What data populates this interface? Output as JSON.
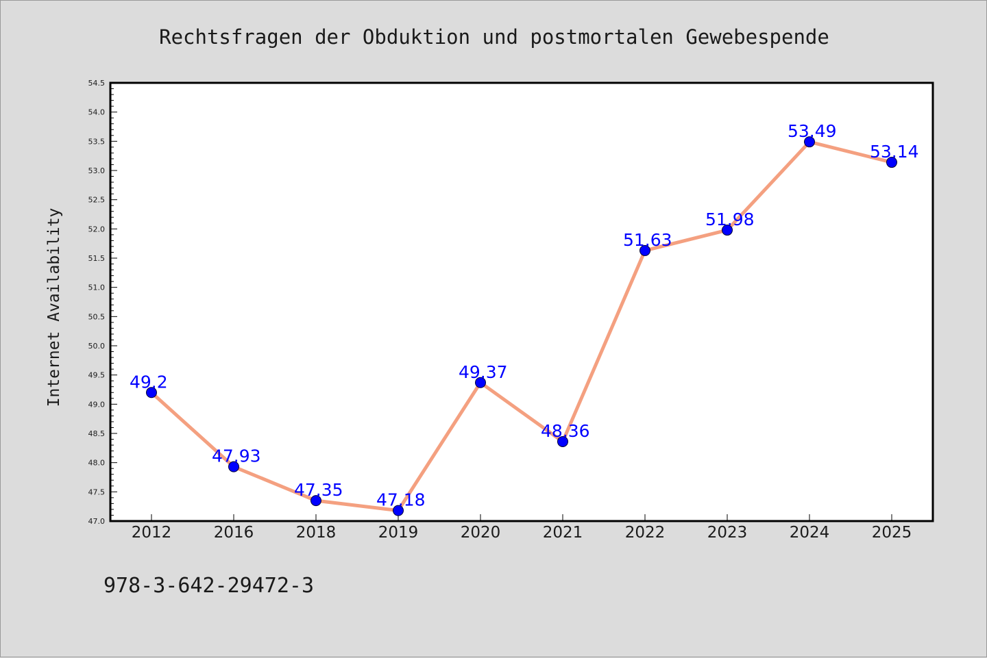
{
  "chart_data": {
    "type": "line",
    "title": "Rechtsfragen der Obduktion und postmortalen Gewebespende",
    "ylabel": "Internet Availability",
    "xlabel": "",
    "categories": [
      "2012",
      "2016",
      "2018",
      "2019",
      "2020",
      "2021",
      "2022",
      "2023",
      "2024",
      "2025"
    ],
    "series": [
      {
        "values": [
          49.2,
          47.93,
          47.35,
          47.18,
          49.37,
          48.36,
          51.63,
          51.98,
          53.49,
          53.14
        ],
        "labels": [
          "49.2",
          "47.93",
          "47.35",
          "47.18",
          "49.37",
          "48.36",
          "51.63",
          "51.98",
          "53.49",
          "53.14"
        ],
        "line_color": "#f4a080",
        "marker_color": "#0000ff"
      }
    ],
    "ylim": [
      47.0,
      54.5
    ],
    "yticks": [
      "47.0",
      "47.5",
      "48.0",
      "48.5",
      "49.0",
      "49.5",
      "50.0",
      "50.5",
      "51.0",
      "51.5",
      "52.0",
      "52.5",
      "53.0",
      "53.5",
      "54.0",
      "54.5"
    ],
    "grid": false,
    "legend": "none",
    "background": "#dcdcdc",
    "plot_background": "#ffffff"
  },
  "footer": {
    "isbn": "978-3-642-29472-3"
  }
}
